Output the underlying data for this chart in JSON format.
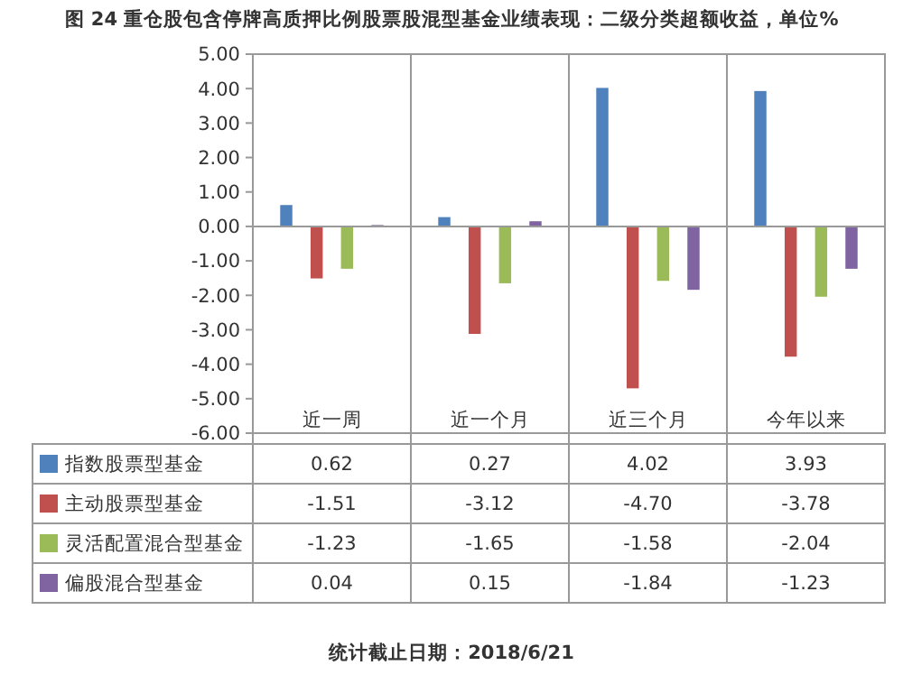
{
  "chart_data": {
    "type": "bar",
    "title": "图 24 重仓股包含停牌高质押比例股票股混型基金业绩表现：二级分类超额收益，单位%",
    "categories": [
      "近一周",
      "近一个月",
      "近三个月",
      "今年以来"
    ],
    "series": [
      {
        "name": "指数股票型基金",
        "color": "#4f81bd",
        "values": [
          0.62,
          0.27,
          4.02,
          3.93
        ],
        "value_labels": [
          "0.62",
          "0.27",
          "4.02",
          "3.93"
        ]
      },
      {
        "name": "主动股票型基金",
        "color": "#c0504d",
        "values": [
          -1.51,
          -3.12,
          -4.7,
          -3.78
        ],
        "value_labels": [
          "-1.51",
          "-3.12",
          "-4.70",
          "-3.78"
        ]
      },
      {
        "name": "灵活配置混合型基金",
        "color": "#9bbb59",
        "values": [
          -1.23,
          -1.65,
          -1.58,
          -2.04
        ],
        "value_labels": [
          "-1.23",
          "-1.65",
          "-1.58",
          "-2.04"
        ]
      },
      {
        "name": "偏股混合型基金",
        "color": "#8064a2",
        "values": [
          0.04,
          0.15,
          -1.84,
          -1.23
        ],
        "value_labels": [
          "0.04",
          "0.15",
          "-1.84",
          "-1.23"
        ]
      }
    ],
    "ylim": [
      -6,
      5
    ],
    "yticks": [
      {
        "value": -6,
        "label": "-6.00"
      },
      {
        "value": -5,
        "label": "-5.00"
      },
      {
        "value": -4,
        "label": "-4.00"
      },
      {
        "value": -3,
        "label": "-3.00"
      },
      {
        "value": -2,
        "label": "-2.00"
      },
      {
        "value": -1,
        "label": "-1.00"
      },
      {
        "value": 0,
        "label": "0.00"
      },
      {
        "value": 1,
        "label": "1.00"
      },
      {
        "value": 2,
        "label": "2.00"
      },
      {
        "value": 3,
        "label": "3.00"
      },
      {
        "value": 4,
        "label": "4.00"
      },
      {
        "value": 5,
        "label": "5.00"
      }
    ],
    "legend": "bottom",
    "annotations": [
      "统计截止日期：2018/6/21"
    ]
  }
}
